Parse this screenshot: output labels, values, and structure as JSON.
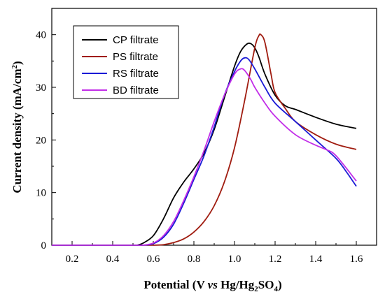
{
  "chart_data": {
    "type": "line",
    "title": "",
    "xlabel": {
      "pre": "Potential (V ",
      "vs": "vs",
      "mid": " Hg/Hg",
      "sub1": "2",
      "mid2": "SO",
      "sub2": "4",
      "post": ")"
    },
    "ylabel": {
      "pre": "Current density (mA/cm",
      "sup": "2",
      "post": ")"
    },
    "xlim": [
      0.1,
      1.7
    ],
    "ylim": [
      0,
      45
    ],
    "xticks": [
      0.2,
      0.4,
      0.6,
      0.8,
      1.0,
      1.2,
      1.4,
      1.6
    ],
    "xtick_labels": [
      "0.2",
      "0.4",
      "0.6",
      "0.8",
      "1.0",
      "1.2",
      "1.4",
      "1.6"
    ],
    "yticks": [
      0,
      10,
      20,
      30,
      40
    ],
    "ytick_labels": [
      "0",
      "10",
      "20",
      "30",
      "40"
    ],
    "legend_position": "top-left",
    "grid": false,
    "series": [
      {
        "name": "CP filtrate",
        "color": "#000000",
        "x": [
          0.52,
          0.55,
          0.6,
          0.65,
          0.7,
          0.75,
          0.8,
          0.85,
          0.9,
          0.95,
          1.0,
          1.03,
          1.06,
          1.08,
          1.1,
          1.12,
          1.15,
          1.2,
          1.25,
          1.3,
          1.4,
          1.5,
          1.6
        ],
        "y": [
          0.0,
          0.4,
          1.8,
          5.0,
          9.0,
          12.0,
          14.5,
          17.5,
          22.0,
          28.0,
          34.0,
          36.8,
          38.2,
          38.3,
          37.5,
          35.8,
          32.5,
          28.5,
          26.5,
          25.8,
          24.3,
          23.0,
          22.2
        ]
      },
      {
        "name": "PS filtrate",
        "color": "#a01c10",
        "x": [
          0.6,
          0.65,
          0.7,
          0.75,
          0.8,
          0.85,
          0.9,
          0.95,
          1.0,
          1.05,
          1.1,
          1.12,
          1.13,
          1.15,
          1.18,
          1.2,
          1.25,
          1.3,
          1.4,
          1.5,
          1.6
        ],
        "y": [
          0.0,
          0.1,
          0.5,
          1.2,
          2.5,
          4.5,
          7.5,
          12.0,
          18.5,
          27.5,
          37.5,
          39.8,
          40.0,
          38.5,
          32.5,
          29.0,
          26.0,
          23.5,
          21.0,
          19.2,
          18.2
        ]
      },
      {
        "name": "RS filtrate",
        "color": "#1a1ad6",
        "x": [
          0.55,
          0.6,
          0.65,
          0.7,
          0.75,
          0.8,
          0.85,
          0.9,
          0.95,
          1.0,
          1.03,
          1.05,
          1.07,
          1.1,
          1.15,
          1.2,
          1.3,
          1.4,
          1.5,
          1.55,
          1.6
        ],
        "y": [
          0.0,
          0.3,
          1.5,
          4.0,
          8.0,
          12.5,
          17.0,
          22.5,
          28.5,
          33.0,
          35.0,
          35.6,
          35.3,
          33.5,
          30.0,
          27.0,
          23.5,
          20.0,
          16.5,
          14.0,
          11.2
        ]
      },
      {
        "name": "BD filtrate",
        "color": "#c22ee8",
        "x": [
          0.55,
          0.6,
          0.65,
          0.7,
          0.75,
          0.8,
          0.85,
          0.9,
          0.95,
          1.0,
          1.03,
          1.05,
          1.08,
          1.1,
          1.15,
          1.2,
          1.3,
          1.4,
          1.45,
          1.5,
          1.6
        ],
        "y": [
          0.0,
          0.4,
          1.8,
          4.5,
          8.5,
          13.0,
          18.0,
          23.5,
          28.5,
          32.5,
          33.5,
          33.2,
          31.5,
          30.0,
          27.0,
          24.5,
          21.0,
          19.0,
          18.2,
          17.0,
          12.2
        ]
      }
    ]
  }
}
